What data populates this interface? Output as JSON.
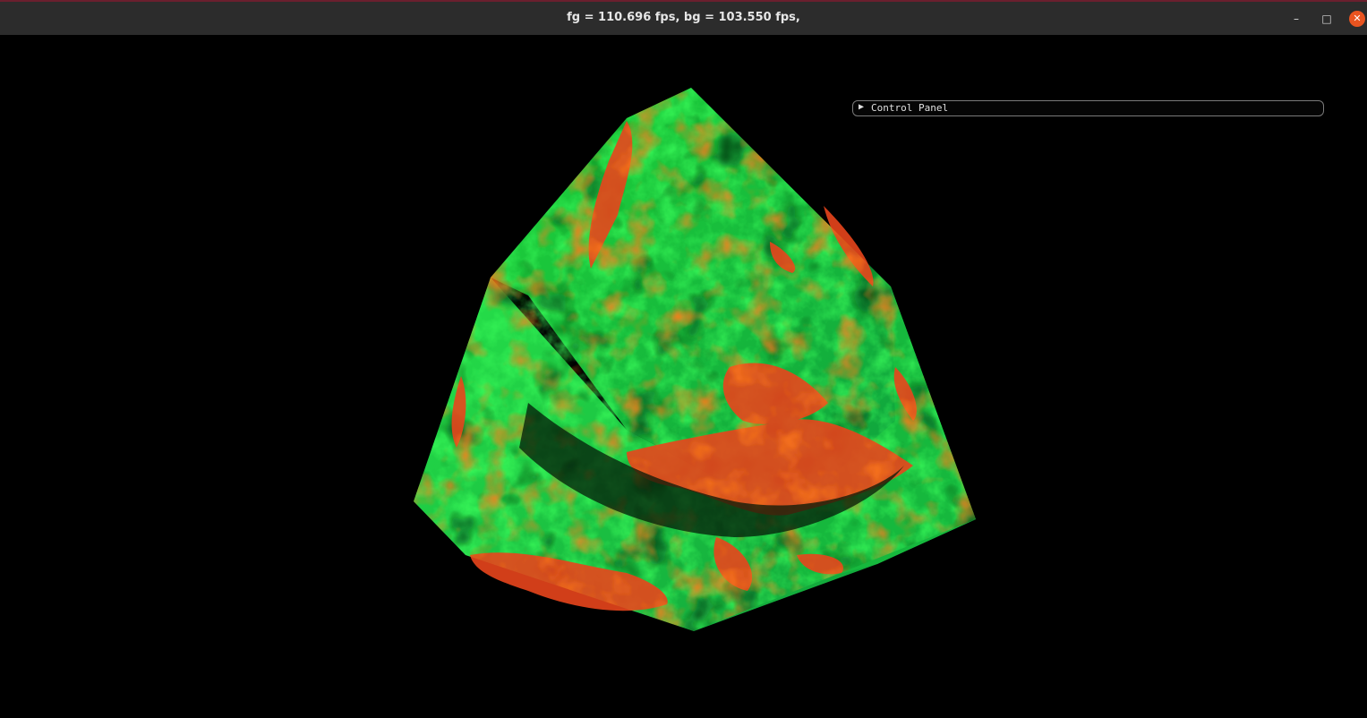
{
  "window": {
    "title": "fg = 110.696 fps, bg = 103.550 fps,",
    "minimize_icon": "minimize-icon",
    "maximize_icon": "maximize-icon",
    "close_icon": "close-icon",
    "minimize_glyph": "–",
    "maximize_glyph": "□",
    "close_glyph": "✕",
    "close_color": "#e95420"
  },
  "control_panel": {
    "arrow": "▶",
    "label": "Control Panel",
    "expanded": false
  },
  "render": {
    "subject": "3d-volume-cube",
    "colors": {
      "primary": "#22e03a",
      "secondary": "#0fa34a",
      "hot": "#e8451c",
      "background": "#000000"
    }
  }
}
